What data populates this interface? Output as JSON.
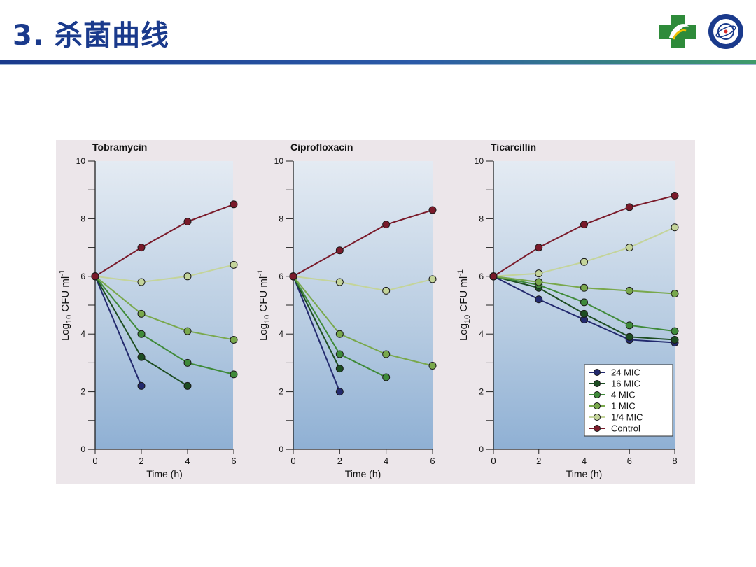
{
  "slide": {
    "title": "3. 杀菌曲线"
  },
  "colors": {
    "title": "#1a3a8c",
    "rule_start": "#1a3a8c",
    "rule_end": "#3f9b6a",
    "24 MIC": "#232a6e",
    "16 MIC": "#1d4d22",
    "4 MIC": "#3f8a3a",
    "1 MIC": "#79a84c",
    "1/4 MIC": "#c4d49a",
    "Control": "#7a1a2a"
  },
  "chart_data": [
    {
      "type": "line",
      "title": "Tobramycin",
      "xlabel": "Time (h)",
      "ylabel": "Log10 CFU ml-1",
      "xlim": [
        0,
        6
      ],
      "ylim": [
        0,
        10
      ],
      "xticks": [
        "0",
        "2",
        "4",
        "6"
      ],
      "yticks": [
        "0",
        "2",
        "4",
        "6",
        "8",
        "10"
      ],
      "series": [
        {
          "name": "24 MIC",
          "x": [
            0,
            2
          ],
          "y": [
            6.0,
            2.2
          ]
        },
        {
          "name": "16 MIC",
          "x": [
            0,
            2,
            4
          ],
          "y": [
            6.0,
            3.2,
            2.2
          ]
        },
        {
          "name": "4 MIC",
          "x": [
            0,
            2,
            4,
            6
          ],
          "y": [
            6.0,
            4.0,
            3.0,
            2.6
          ]
        },
        {
          "name": "1 MIC",
          "x": [
            0,
            2,
            4,
            6
          ],
          "y": [
            6.0,
            4.7,
            4.1,
            3.8
          ]
        },
        {
          "name": "1/4 MIC",
          "x": [
            0,
            2,
            4,
            6
          ],
          "y": [
            6.0,
            5.8,
            6.0,
            6.4
          ]
        },
        {
          "name": "Control",
          "x": [
            0,
            2,
            4,
            6
          ],
          "y": [
            6.0,
            7.0,
            7.9,
            8.5
          ]
        }
      ]
    },
    {
      "type": "line",
      "title": "Ciprofloxacin",
      "xlabel": "Time (h)",
      "ylabel": "Log10 CFU ml-1",
      "xlim": [
        0,
        6
      ],
      "ylim": [
        0,
        10
      ],
      "xticks": [
        "0",
        "2",
        "4",
        "6"
      ],
      "yticks": [
        "0",
        "2",
        "4",
        "6",
        "8",
        "10"
      ],
      "series": [
        {
          "name": "24 MIC",
          "x": [
            0,
            2
          ],
          "y": [
            6.0,
            2.0
          ]
        },
        {
          "name": "16 MIC",
          "x": [
            0,
            2
          ],
          "y": [
            6.0,
            2.8
          ]
        },
        {
          "name": "4 MIC",
          "x": [
            0,
            2,
            4
          ],
          "y": [
            6.0,
            3.3,
            2.5
          ]
        },
        {
          "name": "1 MIC",
          "x": [
            0,
            2,
            4,
            6
          ],
          "y": [
            6.0,
            4.0,
            3.3,
            2.9
          ]
        },
        {
          "name": "1/4 MIC",
          "x": [
            0,
            2,
            4,
            6
          ],
          "y": [
            6.0,
            5.8,
            5.5,
            5.9
          ]
        },
        {
          "name": "Control",
          "x": [
            0,
            2,
            4,
            6
          ],
          "y": [
            6.0,
            6.9,
            7.8,
            8.3
          ]
        }
      ]
    },
    {
      "type": "line",
      "title": "Ticarcillin",
      "xlabel": "Time (h)",
      "ylabel": "Log10 CFU ml-1",
      "xlim": [
        0,
        8
      ],
      "ylim": [
        0,
        10
      ],
      "xticks": [
        "0",
        "2",
        "4",
        "6",
        "8"
      ],
      "yticks": [
        "0",
        "2",
        "4",
        "6",
        "8",
        "10"
      ],
      "legend_position": "bottom-right",
      "series": [
        {
          "name": "24 MIC",
          "x": [
            0,
            2,
            4,
            6,
            8
          ],
          "y": [
            6.0,
            5.2,
            4.5,
            3.8,
            3.7
          ]
        },
        {
          "name": "16 MIC",
          "x": [
            0,
            2,
            4,
            6,
            8
          ],
          "y": [
            6.0,
            5.6,
            4.7,
            3.9,
            3.8
          ]
        },
        {
          "name": "4 MIC",
          "x": [
            0,
            2,
            4,
            6,
            8
          ],
          "y": [
            6.0,
            5.7,
            5.1,
            4.3,
            4.1
          ]
        },
        {
          "name": "1 MIC",
          "x": [
            0,
            2,
            4,
            6,
            8
          ],
          "y": [
            6.0,
            5.8,
            5.6,
            5.5,
            5.4
          ]
        },
        {
          "name": "1/4 MIC",
          "x": [
            0,
            2,
            4,
            6,
            8
          ],
          "y": [
            6.0,
            6.1,
            6.5,
            7.0,
            7.7
          ]
        },
        {
          "name": "Control",
          "x": [
            0,
            2,
            4,
            6,
            8
          ],
          "y": [
            6.0,
            7.0,
            7.8,
            8.4,
            8.8
          ]
        }
      ]
    }
  ]
}
